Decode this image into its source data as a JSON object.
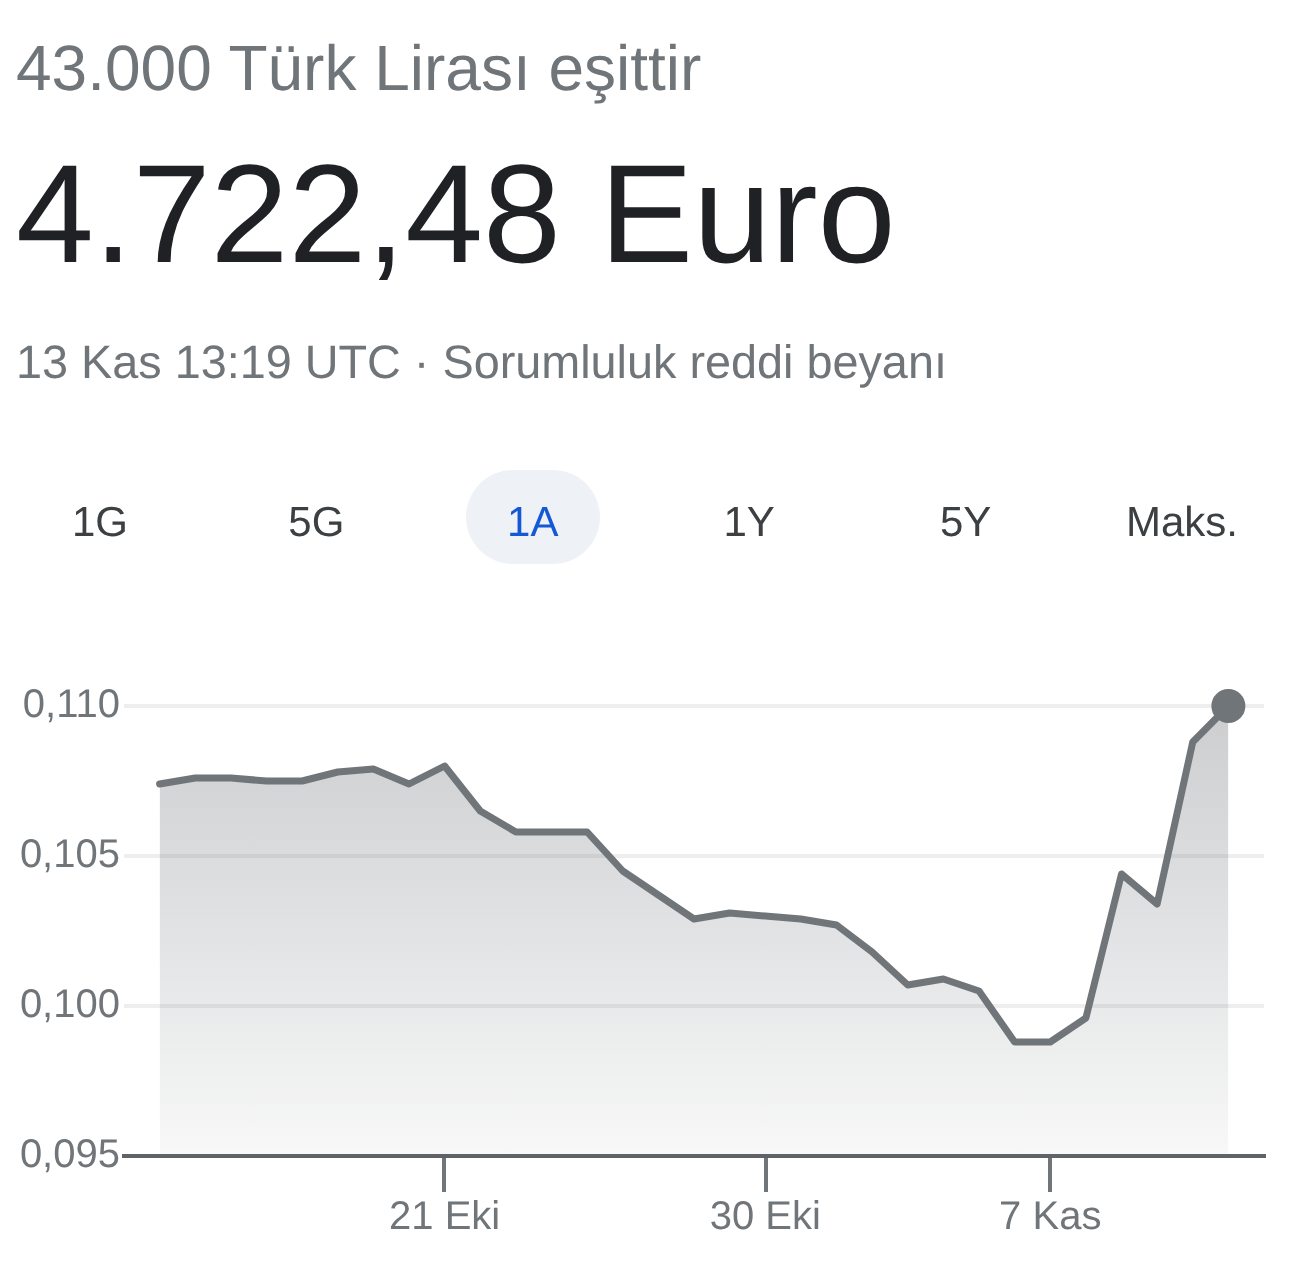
{
  "chart_data": {
    "type": "area",
    "title": "43.000 Türk Lirası eşittir",
    "subtitle": "4.722,48 Euro",
    "annotations": [
      "13 Kas 13:19 UTC · Sorumluluk reddi beyanı",
      "1G",
      "5G",
      "1A",
      "1Y",
      "5Y",
      "Maks."
    ],
    "x": [
      "--10-13",
      "--10-14",
      "--10-15",
      "--10-16",
      "--10-17",
      "--10-18",
      "--10-19",
      "--10-20",
      "--10-21",
      "--10-22",
      "--10-23",
      "--10-24",
      "--10-25",
      "--10-26",
      "--10-27",
      "--10-28",
      "--10-29",
      "--10-30",
      "--10-31",
      "--11-01",
      "--11-02",
      "--11-03",
      "--11-04",
      "--11-05",
      "--11-06",
      "--11-07",
      "--11-08",
      "--11-09",
      "--11-10",
      "--11-11",
      "--11-12"
    ],
    "series": [
      {
        "color": "#70757a",
        "values": [
          0.1074,
          0.1076,
          0.1076,
          0.1075,
          0.1075,
          0.1078,
          0.1079,
          0.1074,
          0.108,
          0.1065,
          0.1058,
          0.1058,
          0.1058,
          0.1045,
          0.1037,
          0.1029,
          0.1031,
          0.103,
          0.1029,
          0.1027,
          0.1018,
          0.1007,
          0.1009,
          0.1005,
          0.0988,
          0.0988,
          0.0996,
          0.1044,
          0.1034,
          0.1088,
          0.11
        ]
      },
      {
        "type": "scatter",
        "color": "#70757a",
        "marker": "circle",
        "x": [
          "--11-12"
        ],
        "values": [
          0.11
        ]
      }
    ],
    "xlim": [
      "--10-12",
      "--11-13"
    ],
    "xticks": [
      {
        "value": "--10-21",
        "label": "21 Eki"
      },
      {
        "value": "--10-30",
        "label": "30 Eki"
      },
      {
        "value": "--11-07",
        "label": "7 Kas"
      }
    ],
    "ylim": [
      0.095,
      0.11
    ],
    "yticks": [
      {
        "value": 0.095,
        "label": "0,095"
      },
      {
        "value": 0.1,
        "label": "0,100"
      },
      {
        "value": 0.105,
        "label": "0,105"
      },
      {
        "value": 0.11,
        "label": "0,110"
      }
    ],
    "grid": "y"
  }
}
